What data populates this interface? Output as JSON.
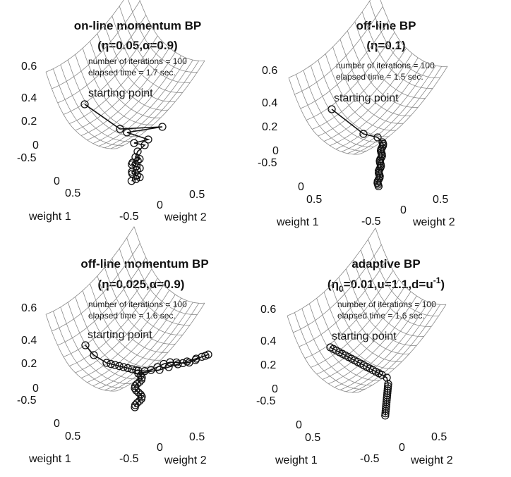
{
  "chart_data": [
    {
      "type": "surface",
      "title": "on-line momentum BP",
      "subtitle": "(η=0.05,α=0.9)",
      "annotations": [
        "number of iterations = 100",
        "elapsed time = 1.7 sec.",
        "starting point"
      ],
      "xlabel": "weight 1",
      "ylabel": "weight 2",
      "x_ticks": [
        "-0.5",
        "0",
        "0.5"
      ],
      "y_ticks": [
        "-0.5",
        "0",
        "0.5"
      ],
      "z_ticks": [
        "0",
        "0.2",
        "0.4",
        "0.6"
      ],
      "zlim": [
        0,
        0.7
      ],
      "trajectory_shape": "zigzag",
      "n_markers": 22
    },
    {
      "type": "surface",
      "title": "off-line BP",
      "subtitle": "(η=0.1)",
      "annotations": [
        "number of iterations = 100",
        "elapsed time = 1.5 sec.",
        "starting point"
      ],
      "xlabel": "weight 1",
      "ylabel": "weight 2",
      "x_ticks": [
        "-0.5",
        "0",
        "0.5"
      ],
      "y_ticks": [
        "-0.5",
        "0",
        "0.5"
      ],
      "z_ticks": [
        "0",
        "0.2",
        "0.4",
        "0.6"
      ],
      "zlim": [
        0,
        0.7
      ],
      "trajectory_shape": "direct",
      "n_markers": 30
    },
    {
      "type": "surface",
      "title": "off-line momentum BP",
      "subtitle": "(η=0.025,α=0.9)",
      "annotations": [
        "number of iterations = 100",
        "elapsed time = 1.6 sec.",
        "starting point"
      ],
      "xlabel": "weight 1",
      "ylabel": "weight 2",
      "x_ticks": [
        "-0.5",
        "0",
        "0.5"
      ],
      "y_ticks": [
        "-0.5",
        "0",
        "0.5"
      ],
      "z_ticks": [
        "0",
        "0.2",
        "0.4",
        "0.6"
      ],
      "zlim": [
        0,
        0.7
      ],
      "trajectory_shape": "overshoot",
      "n_markers": 45
    },
    {
      "type": "surface",
      "title": "adaptive BP",
      "subtitle_parts": [
        "(η",
        "0",
        "=0.01,u=1.1,d=u",
        "-1",
        ")"
      ],
      "annotations": [
        "number of iterations = 100",
        "elapsed time = 1.6 sec.",
        "starting point"
      ],
      "xlabel": "weight 1",
      "ylabel": "weight 2",
      "x_ticks": [
        "-0.5",
        "0",
        "0.5"
      ],
      "y_ticks": [
        "-0.5",
        "0",
        "0.5"
      ],
      "z_ticks": [
        "0",
        "0.2",
        "0.4",
        "0.6"
      ],
      "zlim": [
        0,
        0.7
      ],
      "trajectory_shape": "adaptive",
      "n_markers": 34
    }
  ]
}
